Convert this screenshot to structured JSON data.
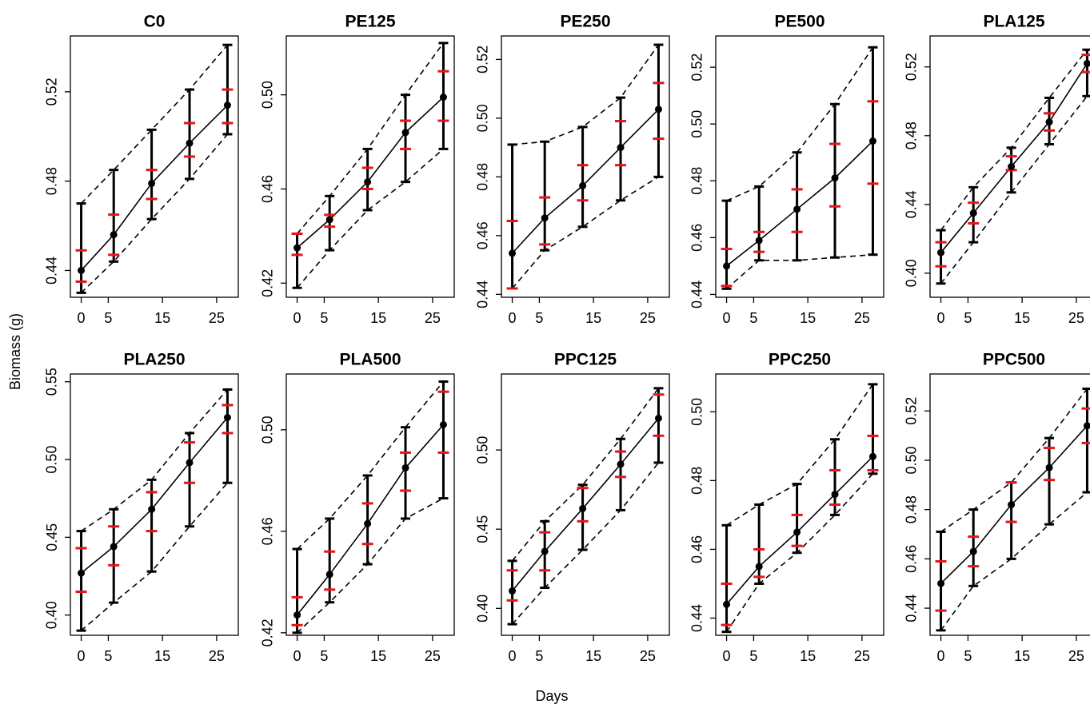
{
  "y_label": "Biomass (g)",
  "x_label": "Days",
  "chart_data": [
    {
      "type": "line",
      "title": "C0",
      "x": [
        0,
        6,
        13,
        20,
        27
      ],
      "xlim": [
        -2,
        29
      ],
      "xticks": [
        0,
        5,
        15,
        25
      ],
      "ylim": [
        0.428,
        0.545
      ],
      "yticks": [
        0.44,
        0.48,
        0.52
      ],
      "values": [
        0.44,
        0.456,
        0.479,
        0.497,
        0.514
      ],
      "err_low": [
        0.43,
        0.444,
        0.463,
        0.481,
        0.501
      ],
      "err_high": [
        0.47,
        0.485,
        0.503,
        0.521,
        0.541
      ],
      "inner_low": [
        0.435,
        0.447,
        0.472,
        0.491,
        0.506
      ],
      "inner_high": [
        0.449,
        0.465,
        0.485,
        0.506,
        0.521
      ]
    },
    {
      "type": "line",
      "title": "PE125",
      "x": [
        0,
        6,
        13,
        20,
        27
      ],
      "xlim": [
        -2,
        29
      ],
      "xticks": [
        0,
        5,
        15,
        25
      ],
      "ylim": [
        0.414,
        0.525
      ],
      "yticks": [
        0.42,
        0.46,
        {
          "value": 0.5,
          "label": "0.50"
        }
      ],
      "values": [
        0.435,
        0.447,
        0.463,
        0.484,
        0.499
      ],
      "err_low": [
        0.418,
        0.434,
        0.451,
        0.463,
        0.477
      ],
      "err_high": [
        0.441,
        0.457,
        0.477,
        0.5,
        0.522
      ],
      "inner_low": [
        0.432,
        0.444,
        0.46,
        0.477,
        0.489
      ],
      "inner_high": [
        0.441,
        0.449,
        0.469,
        0.489,
        0.51
      ]
    },
    {
      "type": "line",
      "title": "PE250",
      "x": [
        0,
        6,
        13,
        20,
        27
      ],
      "xlim": [
        -2,
        29
      ],
      "xticks": [
        0,
        5,
        15,
        25
      ],
      "ylim": [
        0.439,
        0.528
      ],
      "yticks": [
        0.44,
        0.46,
        0.48,
        {
          "value": 0.5,
          "label": "0.50"
        },
        0.52
      ],
      "values": [
        0.454,
        0.466,
        0.477,
        0.49,
        0.503
      ],
      "err_low": [
        0.442,
        0.455,
        0.463,
        0.472,
        0.48
      ],
      "err_high": [
        0.491,
        0.492,
        0.497,
        0.507,
        0.525
      ],
      "inner_low": [
        0.442,
        0.457,
        0.472,
        0.484,
        0.493
      ],
      "inner_high": [
        0.465,
        0.473,
        0.484,
        0.499,
        0.512
      ]
    },
    {
      "type": "line",
      "title": "PE500",
      "x": [
        0,
        6,
        13,
        20,
        27
      ],
      "xlim": [
        -2,
        29
      ],
      "xticks": [
        0,
        5,
        15,
        25
      ],
      "ylim": [
        0.439,
        0.531
      ],
      "yticks": [
        0.44,
        0.46,
        0.48,
        {
          "value": 0.5,
          "label": "0.50"
        },
        0.52
      ],
      "values": [
        0.45,
        0.459,
        0.47,
        0.481,
        0.494
      ],
      "err_low": [
        0.442,
        0.452,
        0.452,
        0.453,
        0.454
      ],
      "err_high": [
        0.473,
        0.478,
        0.49,
        0.507,
        0.527
      ],
      "inner_low": [
        0.443,
        0.455,
        0.462,
        0.471,
        0.479
      ],
      "inner_high": [
        0.456,
        0.462,
        0.477,
        0.493,
        0.508
      ]
    },
    {
      "type": "line",
      "title": "PLA125",
      "x": [
        0,
        6,
        13,
        20,
        27
      ],
      "xlim": [
        -2,
        29
      ],
      "xticks": [
        0,
        5,
        15,
        25
      ],
      "ylim": [
        0.386,
        0.538
      ],
      "yticks": [
        {
          "value": 0.4,
          "label": "0.40"
        },
        0.44,
        0.48,
        0.52
      ],
      "values": [
        0.412,
        0.435,
        0.462,
        0.488,
        0.522
      ],
      "err_low": [
        0.394,
        0.418,
        0.447,
        0.475,
        0.503
      ],
      "err_high": [
        0.425,
        0.45,
        0.473,
        0.502,
        0.53
      ],
      "inner_low": [
        0.404,
        0.429,
        0.46,
        0.483,
        0.517
      ],
      "inner_high": [
        0.418,
        0.441,
        0.468,
        0.493,
        0.527
      ]
    },
    {
      "type": "line",
      "title": "PLA250",
      "x": [
        0,
        6,
        13,
        20,
        27
      ],
      "xlim": [
        -2,
        29
      ],
      "xticks": [
        0,
        5,
        15,
        25
      ],
      "ylim": [
        0.387,
        0.555
      ],
      "yticks": [
        {
          "value": 0.4,
          "label": "0.40"
        },
        0.45,
        {
          "value": 0.5,
          "label": "0.50"
        },
        0.55
      ],
      "values": [
        0.427,
        0.444,
        0.468,
        0.498,
        0.527
      ],
      "err_low": [
        0.39,
        0.408,
        0.428,
        0.457,
        0.485
      ],
      "err_high": [
        0.454,
        0.468,
        0.487,
        0.517,
        0.545
      ],
      "inner_low": [
        0.415,
        0.432,
        0.454,
        0.485,
        0.517
      ],
      "inner_high": [
        0.443,
        0.457,
        0.479,
        0.511,
        0.535
      ]
    },
    {
      "type": "line",
      "title": "PLA500",
      "x": [
        0,
        6,
        13,
        20,
        27
      ],
      "xlim": [
        -2,
        29
      ],
      "xticks": [
        0,
        5,
        15,
        25
      ],
      "ylim": [
        0.419,
        0.522
      ],
      "yticks": [
        0.42,
        0.46,
        {
          "value": 0.5,
          "label": "0.50"
        }
      ],
      "values": [
        0.427,
        0.443,
        0.463,
        0.485,
        0.502
      ],
      "err_low": [
        0.42,
        0.432,
        0.447,
        0.465,
        0.473
      ],
      "err_high": [
        0.453,
        0.465,
        0.482,
        0.501,
        0.519
      ],
      "inner_low": [
        0.423,
        0.437,
        0.455,
        0.476,
        0.491
      ],
      "inner_high": [
        0.434,
        0.452,
        0.471,
        0.491,
        0.515
      ]
    },
    {
      "type": "line",
      "title": "PPC125",
      "x": [
        0,
        6,
        13,
        20,
        27
      ],
      "xlim": [
        -2,
        29
      ],
      "xticks": [
        0,
        5,
        15,
        25
      ],
      "ylim": [
        0.383,
        0.548
      ],
      "yticks": [
        {
          "value": 0.4,
          "label": "0.40"
        },
        0.45,
        {
          "value": 0.5,
          "label": "0.50"
        }
      ],
      "values": [
        0.411,
        0.436,
        0.463,
        0.491,
        0.52
      ],
      "err_low": [
        0.39,
        0.413,
        0.437,
        0.462,
        0.492
      ],
      "err_high": [
        0.43,
        0.455,
        0.478,
        0.507,
        0.539
      ],
      "inner_low": [
        0.405,
        0.424,
        0.455,
        0.483,
        0.509
      ],
      "inner_high": [
        0.424,
        0.448,
        0.476,
        0.499,
        0.535
      ]
    },
    {
      "type": "line",
      "title": "PPC250",
      "x": [
        0,
        6,
        13,
        20,
        27
      ],
      "xlim": [
        -2,
        29
      ],
      "xticks": [
        0,
        5,
        15,
        25
      ],
      "ylim": [
        0.435,
        0.511
      ],
      "yticks": [
        0.44,
        0.46,
        0.48,
        {
          "value": 0.5,
          "label": "0.50"
        }
      ],
      "values": [
        0.444,
        0.455,
        0.465,
        0.476,
        0.487
      ],
      "err_low": [
        0.436,
        0.45,
        0.459,
        0.47,
        0.482
      ],
      "err_high": [
        0.467,
        0.473,
        0.479,
        0.492,
        0.508
      ],
      "inner_low": [
        0.438,
        0.452,
        0.461,
        0.473,
        0.483
      ],
      "inner_high": [
        0.45,
        0.46,
        0.47,
        0.483,
        0.493
      ]
    },
    {
      "type": "line",
      "title": "PPC500",
      "x": [
        0,
        6,
        13,
        20,
        27
      ],
      "xlim": [
        -2,
        29
      ],
      "xticks": [
        0,
        5,
        15,
        25
      ],
      "ylim": [
        0.429,
        0.535
      ],
      "yticks": [
        0.44,
        0.46,
        0.48,
        {
          "value": 0.5,
          "label": "0.50"
        },
        0.52
      ],
      "values": [
        0.45,
        0.463,
        0.482,
        0.497,
        0.514
      ],
      "err_low": [
        0.431,
        0.449,
        0.46,
        0.474,
        0.487
      ],
      "err_high": [
        0.471,
        0.48,
        0.491,
        0.509,
        0.529
      ],
      "inner_low": [
        0.439,
        0.457,
        0.475,
        0.492,
        0.507
      ],
      "inner_high": [
        0.459,
        0.469,
        0.491,
        0.505,
        0.521
      ]
    }
  ]
}
